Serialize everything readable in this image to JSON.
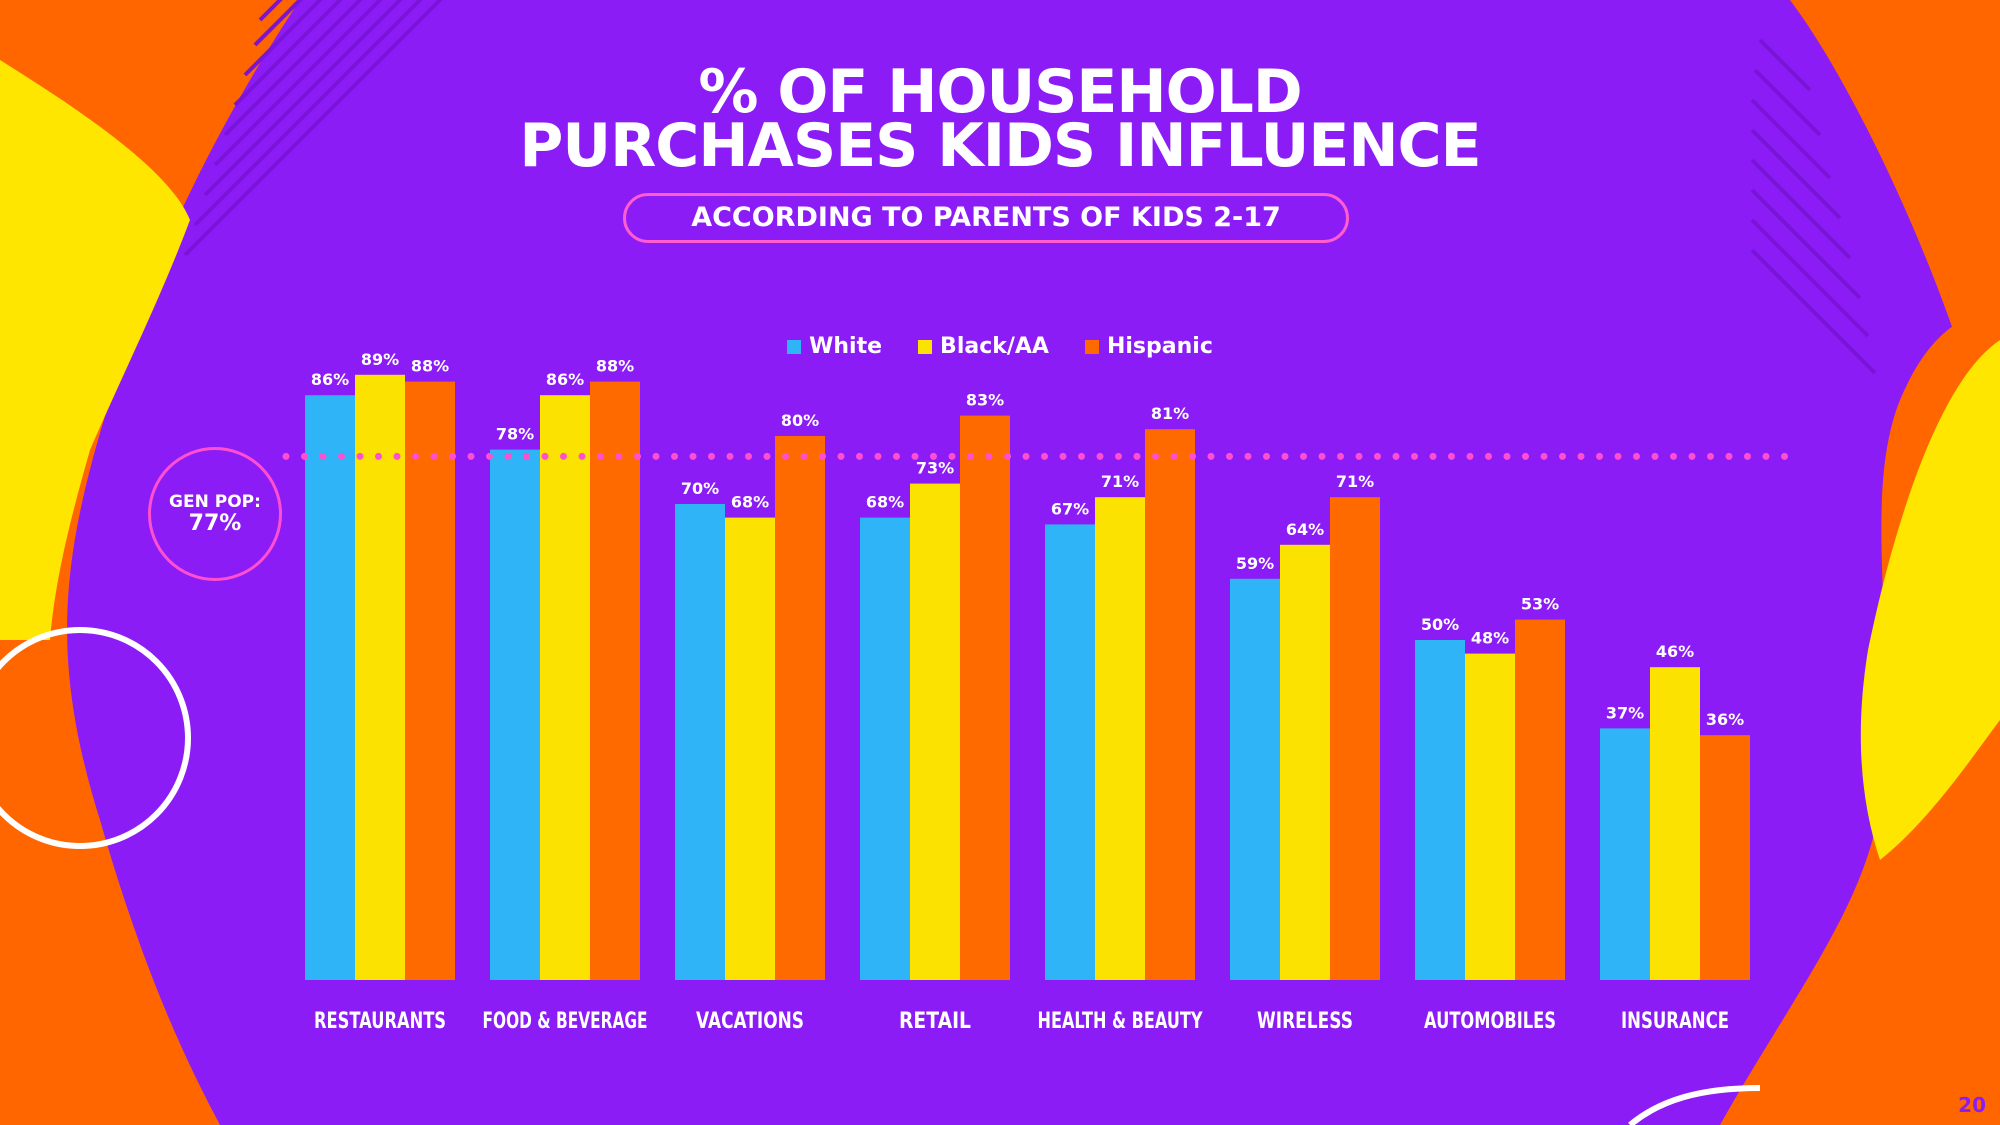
{
  "header": {
    "title_line1": "% OF HOUSEHOLD",
    "title_line2": "PURCHASES KIDS INFLUENCE",
    "subtitle": "ACCORDING TO PARENTS OF KIDS 2-17"
  },
  "gen_pop": {
    "label": "GEN POP:",
    "value_label": "77%",
    "value": 77
  },
  "page_number": "20",
  "colors": {
    "background": "#8c1cf6",
    "orange": "#ff6600",
    "yellow": "#ffe600"
  },
  "chart_data": {
    "type": "bar",
    "categories": [
      "RESTAURANTS",
      "FOOD & BEVERAGE",
      "VACATIONS",
      "RETAIL",
      "HEALTH & BEAUTY",
      "WIRELESS",
      "AUTOMOBILES",
      "INSURANCE"
    ],
    "series": [
      {
        "name": "White",
        "color": "#2eb4f7",
        "values": [
          86,
          78,
          70,
          68,
          67,
          59,
          50,
          37
        ]
      },
      {
        "name": "Black/AA",
        "color": "#fbe200",
        "values": [
          89,
          86,
          68,
          73,
          71,
          64,
          48,
          46
        ]
      },
      {
        "name": "Hispanic",
        "color": "#ff6a00",
        "values": [
          88,
          88,
          80,
          83,
          81,
          71,
          53,
          36
        ]
      }
    ],
    "ylim": [
      0,
      100
    ],
    "reference_line": {
      "value": 77
    },
    "grid": false,
    "legend": "top-center"
  }
}
